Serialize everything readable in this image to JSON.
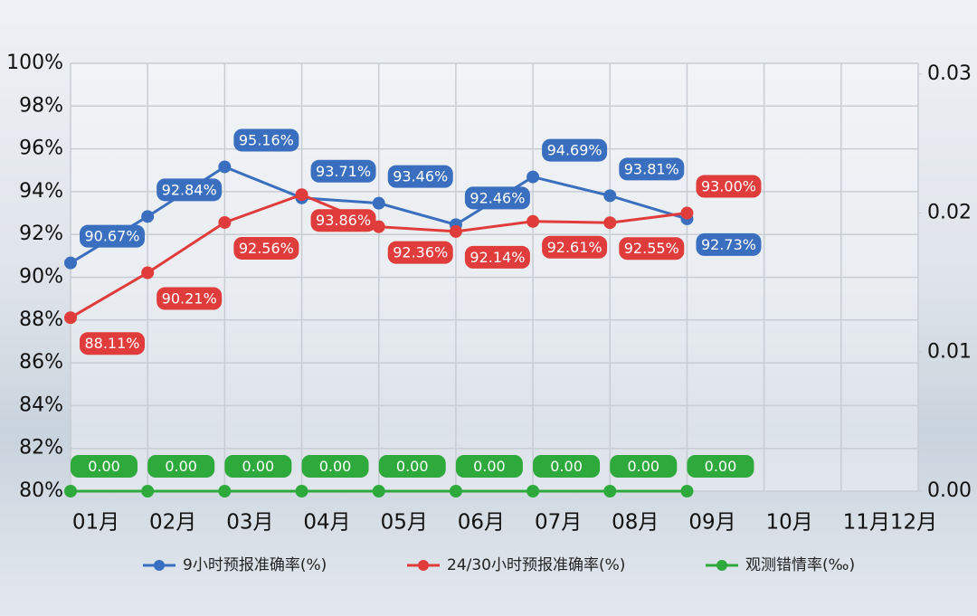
{
  "chart_data": {
    "type": "line",
    "categories": [
      "01月",
      "02月",
      "03月",
      "04月",
      "05月",
      "06月",
      "07月",
      "08月",
      "09月",
      "10月",
      "11月",
      "12月"
    ],
    "ylim": [
      80,
      100
    ],
    "yticks": [
      {
        "value": 80,
        "label": "80%"
      },
      {
        "value": 82,
        "label": "82%"
      },
      {
        "value": 84,
        "label": "84%"
      },
      {
        "value": 86,
        "label": "86%"
      },
      {
        "value": 88,
        "label": "88%"
      },
      {
        "value": 90,
        "label": "90%"
      },
      {
        "value": 92,
        "label": "92%"
      },
      {
        "value": 94,
        "label": "94%"
      },
      {
        "value": 96,
        "label": "96%"
      },
      {
        "value": 98,
        "label": "98%"
      },
      {
        "value": 100,
        "label": "100%"
      }
    ],
    "y2lim": [
      0,
      0.03
    ],
    "y2ticks": [
      {
        "value": 0,
        "label": "0.00"
      },
      0.01,
      0.02,
      0.03
    ],
    "grid": true,
    "legend": "bottom",
    "series": [
      {
        "name": "9小时预报准确率(%)",
        "color": "#3a6fbf",
        "values": [
          90.67,
          92.84,
          95.16,
          93.71,
          93.46,
          92.46,
          94.69,
          93.81,
          92.73,
          null,
          null,
          null
        ],
        "value_labels": [
          "90.67%",
          "92.84%",
          "95.16%",
          "93.71%",
          "93.46%",
          "92.46%",
          "94.69%",
          "93.81%",
          "92.73%",
          null,
          null,
          null
        ]
      },
      {
        "name": "24/30小时预报准确率(%)",
        "color": "#e03c3c",
        "values": [
          88.11,
          90.21,
          92.56,
          93.86,
          92.36,
          92.14,
          92.61,
          92.55,
          93.0,
          null,
          null,
          null
        ],
        "value_labels": [
          "88.11%",
          "90.21%",
          "92.56%",
          "93.86%",
          "92.36%",
          "92.14%",
          "92.61%",
          "92.55%",
          "93.00%",
          null,
          null,
          null
        ]
      },
      {
        "name": "观测错情率(‰)",
        "color": "#2eaa3c",
        "axis": "y2",
        "values": [
          0,
          0,
          0,
          0,
          0,
          0,
          0,
          0,
          0,
          null,
          null,
          null
        ],
        "value_labels": [
          "0.00",
          "0.00",
          "0.00",
          "0.00",
          "0.00",
          "0.00",
          "0.00",
          "0.00",
          "0.00",
          null,
          null,
          null
        ]
      }
    ]
  }
}
